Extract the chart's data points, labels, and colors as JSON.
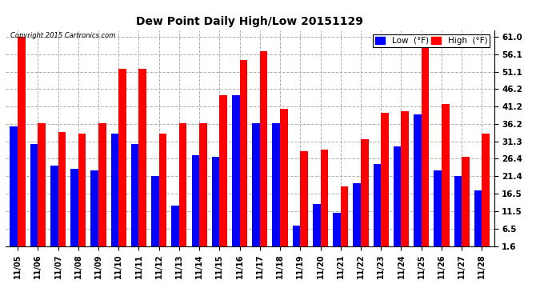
{
  "title": "Dew Point Daily High/Low 20151129",
  "copyright": "Copyright 2015 Cartronics.com",
  "yticks": [
    1.6,
    6.5,
    11.5,
    16.5,
    21.4,
    26.4,
    31.3,
    36.2,
    41.2,
    46.2,
    51.1,
    56.1,
    61.0
  ],
  "dates": [
    "11/05",
    "11/06",
    "11/07",
    "11/08",
    "11/09",
    "11/10",
    "11/11",
    "11/12",
    "11/13",
    "11/14",
    "11/15",
    "11/16",
    "11/17",
    "11/18",
    "11/19",
    "11/20",
    "11/21",
    "11/22",
    "11/23",
    "11/24",
    "11/25",
    "11/26",
    "11/27",
    "11/28"
  ],
  "high": [
    61.0,
    36.5,
    34.0,
    33.5,
    36.5,
    52.0,
    52.0,
    33.5,
    36.5,
    36.5,
    44.5,
    54.5,
    57.0,
    40.5,
    28.5,
    29.0,
    18.5,
    32.0,
    39.5,
    40.0,
    58.0,
    42.0,
    27.0,
    33.5
  ],
  "low": [
    35.5,
    30.5,
    24.5,
    23.5,
    23.0,
    33.5,
    30.5,
    21.5,
    13.0,
    27.5,
    27.0,
    44.5,
    36.5,
    36.5,
    7.5,
    13.5,
    11.0,
    19.5,
    25.0,
    30.0,
    39.0,
    23.0,
    21.5,
    17.5
  ],
  "high_color": "#ff0000",
  "low_color": "#0000ff",
  "bg_color": "#ffffff",
  "plot_bg_color": "#ffffff",
  "grid_color": "#b0b0b0",
  "ylim": [
    1.6,
    63.0
  ],
  "figwidth": 6.9,
  "figheight": 3.75,
  "legend_high_label": "High  (°F)",
  "legend_low_label": "Low  (°F)"
}
